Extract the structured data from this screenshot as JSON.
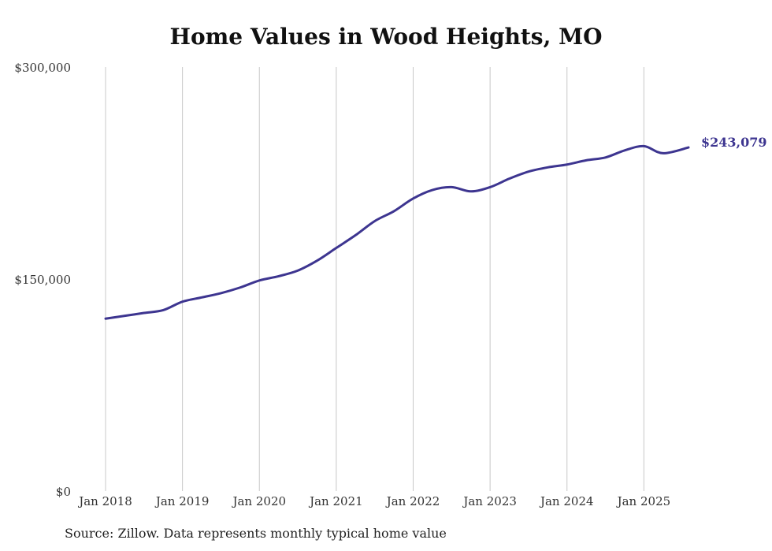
{
  "colors": {
    "line": "#3d3590",
    "grid": "#c8c8c8",
    "text": "#333333"
  },
  "chart_data": {
    "type": "line",
    "title": "Home Values in Wood Heights, MO",
    "xlabel": "",
    "ylabel": "",
    "ylim": [
      0,
      300000
    ],
    "xlim": [
      2018.0,
      2025.6
    ],
    "y_ticks": [
      {
        "value": 0,
        "label": "$0"
      },
      {
        "value": 150000,
        "label": "$150,000"
      },
      {
        "value": 300000,
        "label": "$300,000"
      }
    ],
    "x_ticks": [
      {
        "value": 2018,
        "label": "Jan 2018"
      },
      {
        "value": 2019,
        "label": "Jan 2019"
      },
      {
        "value": 2020,
        "label": "Jan 2020"
      },
      {
        "value": 2021,
        "label": "Jan 2021"
      },
      {
        "value": 2022,
        "label": "Jan 2022"
      },
      {
        "value": 2023,
        "label": "Jan 2023"
      },
      {
        "value": 2024,
        "label": "Jan 2024"
      },
      {
        "value": 2025,
        "label": "Jan 2025"
      }
    ],
    "series": [
      {
        "name": "Typical home value",
        "x": [
          2018.0,
          2018.25,
          2018.5,
          2018.75,
          2019.0,
          2019.25,
          2019.5,
          2019.75,
          2020.0,
          2020.25,
          2020.5,
          2020.75,
          2021.0,
          2021.25,
          2021.5,
          2021.75,
          2022.0,
          2022.25,
          2022.5,
          2022.75,
          2023.0,
          2023.25,
          2023.5,
          2023.75,
          2024.0,
          2024.25,
          2024.5,
          2024.75,
          2025.0,
          2025.25,
          2025.58
        ],
        "values": [
          122000,
          124000,
          126000,
          128000,
          134000,
          137000,
          140000,
          144000,
          149000,
          152000,
          156000,
          163000,
          172000,
          181000,
          191000,
          198000,
          207000,
          213000,
          215000,
          212000,
          215000,
          221000,
          226000,
          229000,
          231000,
          234000,
          236000,
          241000,
          244000,
          239000,
          243079
        ]
      }
    ],
    "end_label": "$243,079"
  },
  "footer": {
    "source": "Source: Zillow. Data represents monthly typical home value"
  }
}
